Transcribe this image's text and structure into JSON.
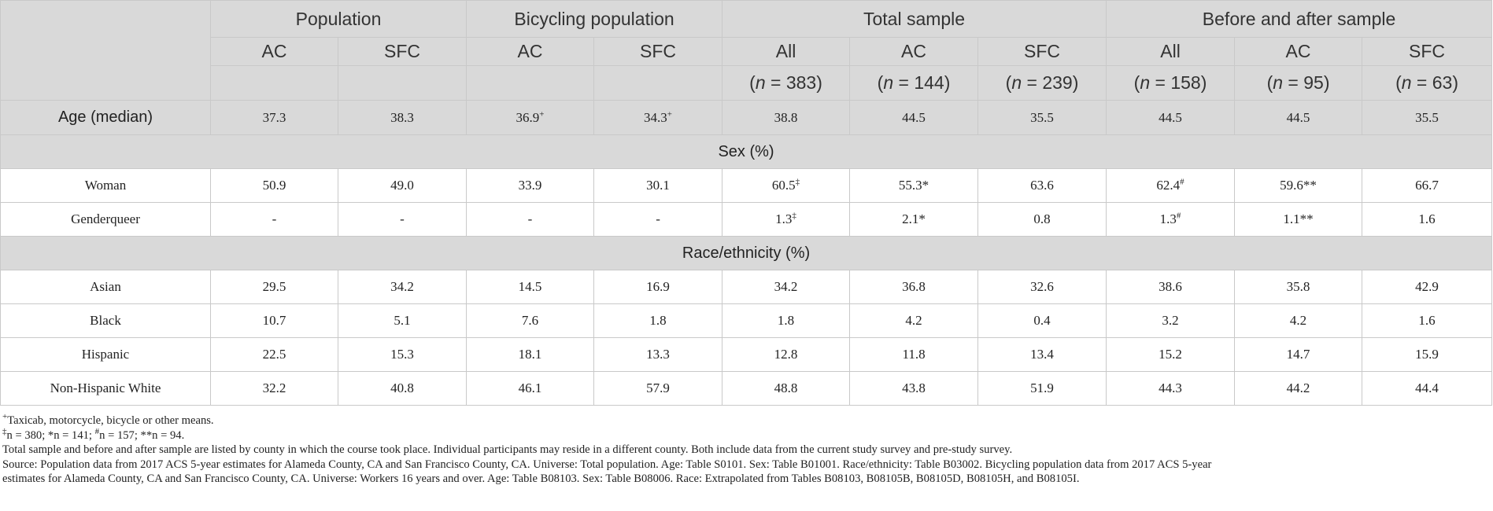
{
  "header": {
    "groups": [
      "Population",
      "Bicycling population",
      "Total sample",
      "Before and after sample"
    ],
    "subheaders": [
      "AC",
      "SFC",
      "AC",
      "SFC",
      "All",
      "AC",
      "SFC",
      "All",
      "AC",
      "SFC"
    ],
    "n_italic": "n",
    "n_values": [
      "",
      "",
      "",
      "",
      "= 383)",
      "= 144)",
      "= 239)",
      "= 158)",
      "= 95)",
      "= 63)"
    ],
    "n_open": "("
  },
  "age_row": {
    "label": "Age (median)",
    "values": [
      "37.3",
      "38.3",
      "36.9",
      "34.3",
      "38.8",
      "44.5",
      "35.5",
      "44.5",
      "44.5",
      "35.5"
    ],
    "sups": [
      "",
      "",
      "+",
      "+",
      "",
      "",
      "",
      "",
      "",
      ""
    ]
  },
  "sections": {
    "sex": "Sex (%)",
    "race": "Race/ethnicity (%)"
  },
  "sex_rows": [
    {
      "label": "Woman",
      "values": [
        "50.9",
        "49.0",
        "33.9",
        "30.1",
        "60.5",
        "55.3*",
        "63.6",
        "62.4",
        "59.6**",
        "66.7"
      ],
      "sups": [
        "",
        "",
        "",
        "",
        "‡",
        "",
        "",
        "#",
        "",
        ""
      ]
    },
    {
      "label": "Genderqueer",
      "values": [
        "-",
        "-",
        "-",
        "-",
        "1.3",
        "2.1*",
        "0.8",
        "1.3",
        "1.1**",
        "1.6"
      ],
      "sups": [
        "",
        "",
        "",
        "",
        "‡",
        "",
        "",
        "#",
        "",
        ""
      ]
    }
  ],
  "race_rows": [
    {
      "label": "Asian",
      "values": [
        "29.5",
        "34.2",
        "14.5",
        "16.9",
        "34.2",
        "36.8",
        "32.6",
        "38.6",
        "35.8",
        "42.9"
      ]
    },
    {
      "label": "Black",
      "values": [
        "10.7",
        "5.1",
        "7.6",
        "1.8",
        "1.8",
        "4.2",
        "0.4",
        "3.2",
        "4.2",
        "1.6"
      ]
    },
    {
      "label": "Hispanic",
      "values": [
        "22.5",
        "15.3",
        "18.1",
        "13.3",
        "12.8",
        "11.8",
        "13.4",
        "15.2",
        "14.7",
        "15.9"
      ]
    },
    {
      "label": "Non-Hispanic White",
      "values": [
        "32.2",
        "40.8",
        "46.1",
        "57.9",
        "48.8",
        "43.8",
        "51.9",
        "44.3",
        "44.2",
        "44.4"
      ]
    }
  ],
  "notes": {
    "n1_sup": "+",
    "n1_text": "Taxicab, motorcycle, bicycle or other means.",
    "n2_text": "n = 380; *n = 141; ",
    "n2_sup_a": "‡",
    "n2_sup_b": "#",
    "n2_text_b": "n = 157; **n = 94.",
    "n3": "Total sample and before and after sample are listed by county in which the course took place. Individual participants may reside in a different county. Both include data from the current study survey and pre-study survey.",
    "n4": "Source: Population data from 2017 ACS 5-year estimates for Alameda County, CA and San Francisco County, CA. Universe: Total population. Age: Table S0101. Sex: Table B01001. Race/ethnicity: Table B03002. Bicycling population data from 2017 ACS 5-year",
    "n5": "estimates for Alameda County, CA and San Francisco County, CA. Universe: Workers 16 years and over. Age: Table B08103. Sex: Table B08006. Race: Extrapolated from Tables B08103, B08105B, B08105D, B08105H, and B08105I."
  }
}
